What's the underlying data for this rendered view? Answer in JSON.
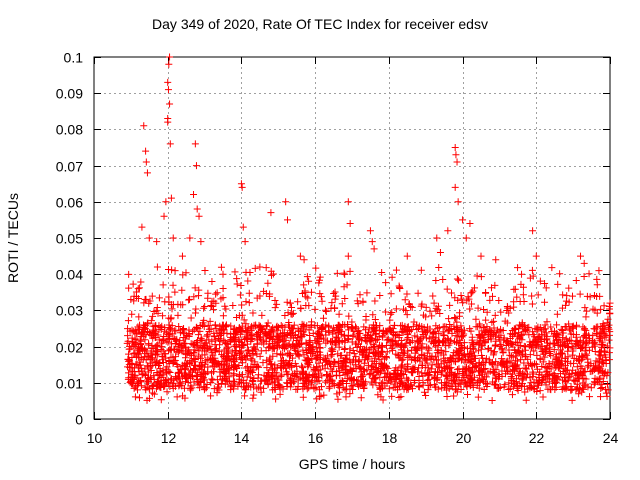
{
  "chart_data": {
    "type": "scatter",
    "title": "Day 349 of 2020, Rate Of TEC Index for receiver edsv",
    "xlabel": "GPS time / hours",
    "ylabel": "ROTI / TECUs",
    "xlim": [
      10,
      24
    ],
    "ylim": [
      0,
      0.1
    ],
    "xticks": [
      "10",
      "12",
      "14",
      "16",
      "18",
      "20",
      "22",
      "24"
    ],
    "yticks": [
      "0",
      "0.01",
      "0.02",
      "0.03",
      "0.04",
      "0.05",
      "0.06",
      "0.07",
      "0.08",
      "0.09",
      "0.1"
    ],
    "grid": true,
    "marker": "+",
    "color": "#ff0000",
    "series": [
      {
        "x_range": [
          10.9,
          24.0
        ],
        "typical_range": [
          0.005,
          0.035
        ],
        "points": [
          [
            11.0,
            0.033
          ],
          [
            11.2,
            0.036
          ],
          [
            11.3,
            0.053
          ],
          [
            11.35,
            0.081
          ],
          [
            11.4,
            0.074
          ],
          [
            11.42,
            0.071
          ],
          [
            11.45,
            0.068
          ],
          [
            11.5,
            0.05
          ],
          [
            11.7,
            0.049
          ],
          [
            11.9,
            0.056
          ],
          [
            11.95,
            0.06
          ],
          [
            12.0,
            0.082
          ],
          [
            12.0,
            0.083
          ],
          [
            12.02,
            0.091
          ],
          [
            12.0,
            0.093
          ],
          [
            12.03,
            0.098
          ],
          [
            12.05,
            0.1
          ],
          [
            12.05,
            0.087
          ],
          [
            12.07,
            0.076
          ],
          [
            12.1,
            0.061
          ],
          [
            12.15,
            0.05
          ],
          [
            12.2,
            0.041
          ],
          [
            12.4,
            0.045
          ],
          [
            12.6,
            0.05
          ],
          [
            12.7,
            0.062
          ],
          [
            12.75,
            0.076
          ],
          [
            12.78,
            0.07
          ],
          [
            12.8,
            0.058
          ],
          [
            12.85,
            0.056
          ],
          [
            12.9,
            0.049
          ],
          [
            13.2,
            0.038
          ],
          [
            13.5,
            0.04
          ],
          [
            14.0,
            0.065
          ],
          [
            14.02,
            0.064
          ],
          [
            14.05,
            0.053
          ],
          [
            14.1,
            0.049
          ],
          [
            14.5,
            0.042
          ],
          [
            14.8,
            0.057
          ],
          [
            15.2,
            0.06
          ],
          [
            15.25,
            0.055
          ],
          [
            15.6,
            0.045
          ],
          [
            15.7,
            0.044
          ],
          [
            15.9,
            0.035
          ],
          [
            16.9,
            0.06
          ],
          [
            16.95,
            0.054
          ],
          [
            16.9,
            0.045
          ],
          [
            17.5,
            0.052
          ],
          [
            17.55,
            0.049
          ],
          [
            17.6,
            0.047
          ],
          [
            18.5,
            0.045
          ],
          [
            19.3,
            0.05
          ],
          [
            19.4,
            0.046
          ],
          [
            19.6,
            0.052
          ],
          [
            19.8,
            0.064
          ],
          [
            19.8,
            0.075
          ],
          [
            19.82,
            0.073
          ],
          [
            19.85,
            0.071
          ],
          [
            19.88,
            0.06
          ],
          [
            20.0,
            0.055
          ],
          [
            20.1,
            0.05
          ],
          [
            20.2,
            0.054
          ],
          [
            20.5,
            0.045
          ],
          [
            20.9,
            0.044
          ],
          [
            21.6,
            0.04
          ],
          [
            21.9,
            0.052
          ],
          [
            22.0,
            0.045
          ],
          [
            23.2,
            0.045
          ],
          [
            23.3,
            0.043
          ],
          [
            23.7,
            0.041
          ],
          [
            24.0,
            0.032
          ]
        ]
      }
    ]
  }
}
